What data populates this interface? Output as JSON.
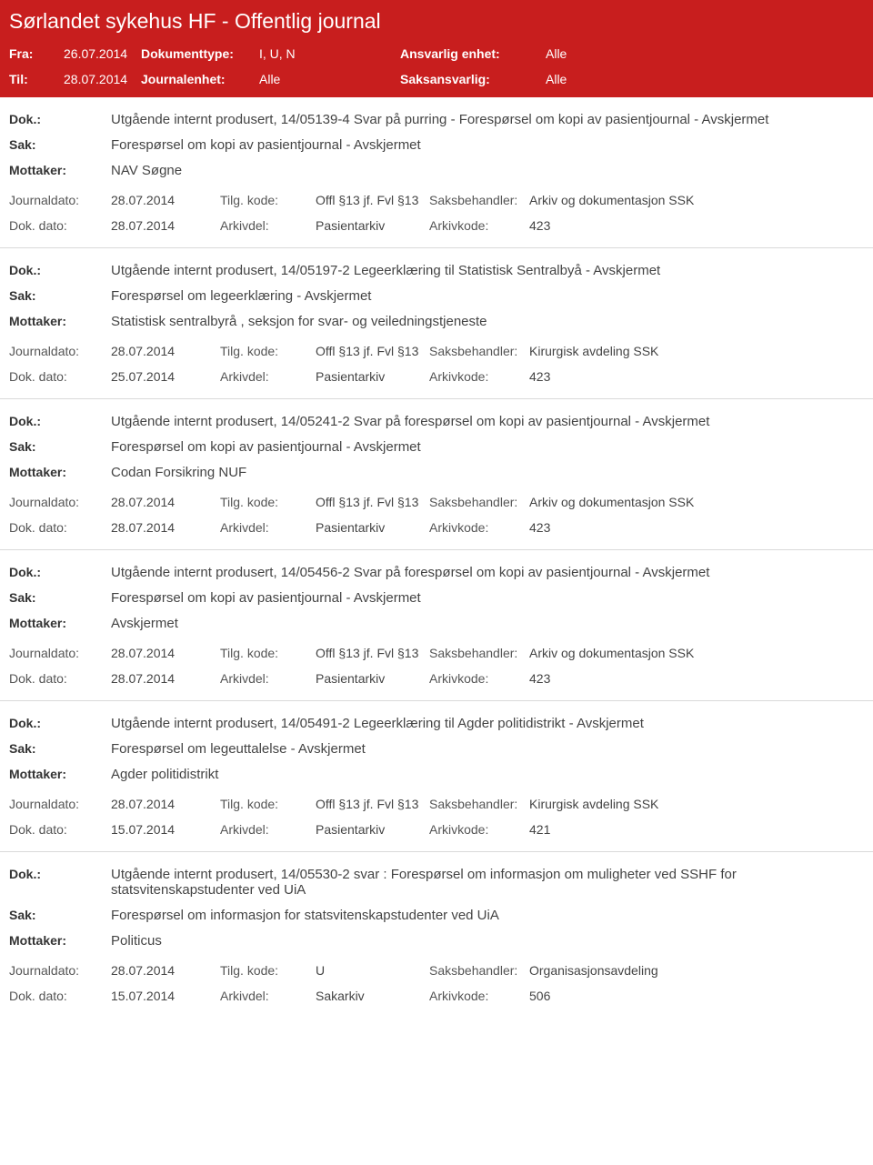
{
  "colors": {
    "header_bg": "#c81e1e",
    "header_text": "#ffffff",
    "entry_border": "#d9d9d9",
    "body_text": "#333333"
  },
  "header": {
    "title": "Sørlandet sykehus HF - Offentlig journal",
    "l_fra": "Fra:",
    "v_fra": "26.07.2014",
    "l_doktype": "Dokumenttype:",
    "v_doktype": "I, U, N",
    "l_enhet": "Ansvarlig enhet:",
    "v_enhet": "Alle",
    "l_til": "Til:",
    "v_til": "28.07.2014",
    "l_jenhet": "Journalenhet:",
    "v_jenhet": "Alle",
    "l_saks": "Saksansvarlig:",
    "v_saks": "Alle"
  },
  "labels": {
    "dok": "Dok.:",
    "sak": "Sak:",
    "mottaker": "Mottaker:",
    "journaldato": "Journaldato:",
    "dokdato": "Dok. dato:",
    "tilgkode": "Tilg. kode:",
    "arkivdel": "Arkivdel:",
    "saksbehandler": "Saksbehandler:",
    "arkivkode": "Arkivkode:"
  },
  "entries": [
    {
      "dok": "Utgående internt produsert, 14/05139-4 Svar på purring - Forespørsel om kopi av pasientjournal - Avskjermet",
      "sak": "Forespørsel om kopi av pasientjournal - Avskjermet",
      "mottaker": "NAV Søgne",
      "journaldato": "28.07.2014",
      "tilgkode": "Offl §13 jf. Fvl §13",
      "saksbehandler": "Arkiv og dokumentasjon SSK",
      "dokdato": "28.07.2014",
      "arkivdel": "Pasientarkiv",
      "arkivkode": "423"
    },
    {
      "dok": "Utgående internt produsert, 14/05197-2 Legeerklæring til Statistisk Sentralbyå - Avskjermet",
      "sak": "Forespørsel om legeerklæring - Avskjermet",
      "mottaker": "Statistisk sentralbyrå , seksjon for svar- og veiledningstjeneste",
      "journaldato": "28.07.2014",
      "tilgkode": "Offl §13 jf. Fvl §13",
      "saksbehandler": "Kirurgisk avdeling SSK",
      "dokdato": "25.07.2014",
      "arkivdel": "Pasientarkiv",
      "arkivkode": "423"
    },
    {
      "dok": "Utgående internt produsert, 14/05241-2 Svar på forespørsel om kopi av pasientjournal - Avskjermet",
      "sak": "Forespørsel om kopi av pasientjournal - Avskjermet",
      "mottaker": "Codan Forsikring NUF",
      "journaldato": "28.07.2014",
      "tilgkode": "Offl §13 jf. Fvl §13",
      "saksbehandler": "Arkiv og dokumentasjon SSK",
      "dokdato": "28.07.2014",
      "arkivdel": "Pasientarkiv",
      "arkivkode": "423"
    },
    {
      "dok": "Utgående internt produsert, 14/05456-2 Svar på forespørsel om kopi av pasientjournal - Avskjermet",
      "sak": "Forespørsel om kopi av pasientjournal - Avskjermet",
      "mottaker": "Avskjermet",
      "journaldato": "28.07.2014",
      "tilgkode": "Offl §13 jf. Fvl §13",
      "saksbehandler": "Arkiv og dokumentasjon SSK",
      "dokdato": "28.07.2014",
      "arkivdel": "Pasientarkiv",
      "arkivkode": "423"
    },
    {
      "dok": "Utgående internt produsert, 14/05491-2 Legeerklæring til Agder politidistrikt - Avskjermet",
      "sak": "Forespørsel om legeuttalelse - Avskjermet",
      "mottaker": "Agder politidistrikt",
      "journaldato": "28.07.2014",
      "tilgkode": "Offl §13 jf. Fvl §13",
      "saksbehandler": "Kirurgisk avdeling SSK",
      "dokdato": "15.07.2014",
      "arkivdel": "Pasientarkiv",
      "arkivkode": "421"
    },
    {
      "dok": "Utgående internt produsert, 14/05530-2 svar : Forespørsel om informasjon om muligheter ved SSHF for statsvitenskapstudenter ved UiA",
      "sak": "Forespørsel om informasjon for statsvitenskapstudenter ved UiA",
      "mottaker": "Politicus",
      "journaldato": "28.07.2014",
      "tilgkode": "U",
      "saksbehandler": "Organisasjonsavdeling",
      "dokdato": "15.07.2014",
      "arkivdel": "Sakarkiv",
      "arkivkode": "506"
    }
  ]
}
